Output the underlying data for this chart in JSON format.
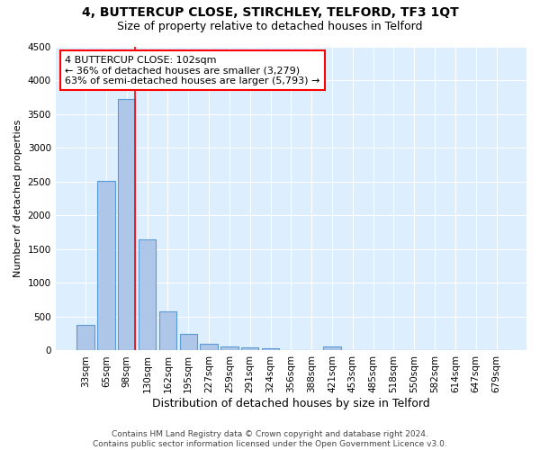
{
  "title1": "4, BUTTERCUP CLOSE, STIRCHLEY, TELFORD, TF3 1QT",
  "title2": "Size of property relative to detached houses in Telford",
  "xlabel": "Distribution of detached houses by size in Telford",
  "ylabel": "Number of detached properties",
  "categories": [
    "33sqm",
    "65sqm",
    "98sqm",
    "130sqm",
    "162sqm",
    "195sqm",
    "227sqm",
    "259sqm",
    "291sqm",
    "324sqm",
    "356sqm",
    "388sqm",
    "421sqm",
    "453sqm",
    "485sqm",
    "518sqm",
    "550sqm",
    "582sqm",
    "614sqm",
    "647sqm",
    "679sqm"
  ],
  "values": [
    380,
    2510,
    3720,
    1640,
    580,
    240,
    105,
    60,
    40,
    30,
    0,
    0,
    55,
    0,
    0,
    0,
    0,
    0,
    0,
    0,
    0
  ],
  "bar_color": "#aec6e8",
  "bar_edge_color": "#5b9bd5",
  "highlight_index": 2,
  "annotation_text": "4 BUTTERCUP CLOSE: 102sqm\n← 36% of detached houses are smaller (3,279)\n63% of semi-detached houses are larger (5,793) →",
  "annotation_box_color": "white",
  "annotation_box_edge_color": "red",
  "ylim": [
    0,
    4500
  ],
  "yticks": [
    0,
    500,
    1000,
    1500,
    2000,
    2500,
    3000,
    3500,
    4000,
    4500
  ],
  "background_color": "#ddeeff",
  "grid_color": "white",
  "footer": "Contains HM Land Registry data © Crown copyright and database right 2024.\nContains public sector information licensed under the Open Government Licence v3.0.",
  "title1_fontsize": 10,
  "title2_fontsize": 9,
  "xlabel_fontsize": 9,
  "ylabel_fontsize": 8,
  "tick_fontsize": 7.5,
  "annotation_fontsize": 8,
  "footer_fontsize": 6.5
}
